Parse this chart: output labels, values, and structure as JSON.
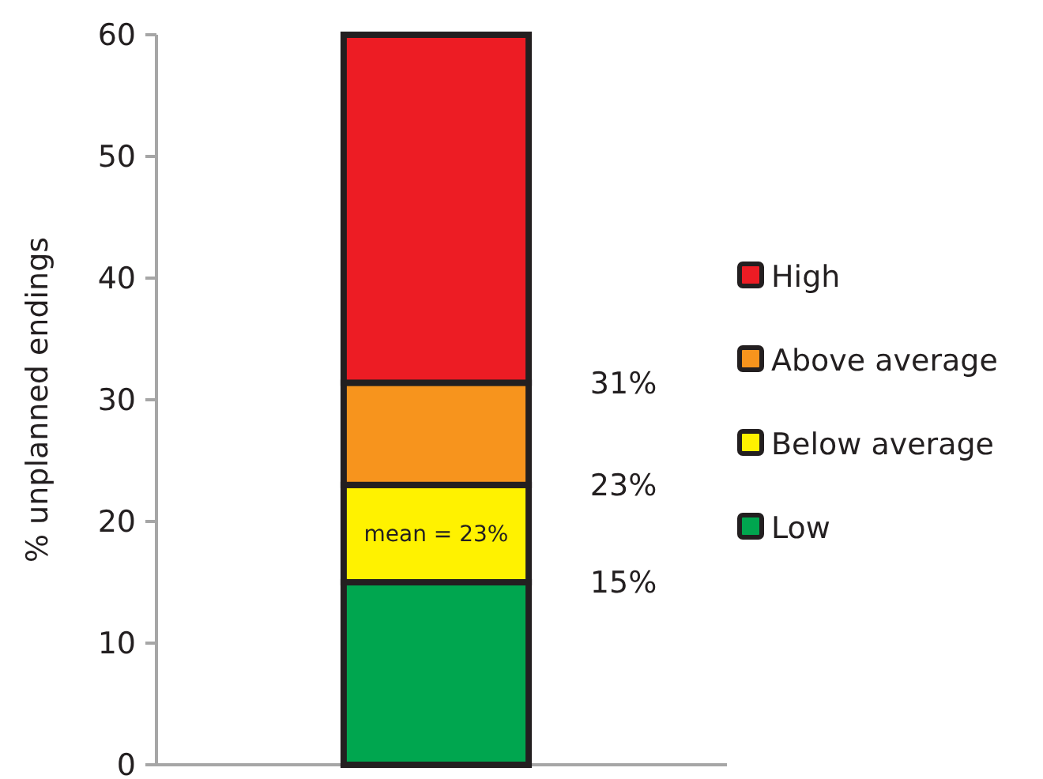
{
  "chart_data": {
    "type": "bar",
    "stacked": true,
    "categories": [
      null
    ],
    "ylabel": "% unplanned endings",
    "series": [
      {
        "name": "Low",
        "color": "#00a64f",
        "values": [
          15
        ]
      },
      {
        "name": "Below average",
        "color": "#fff200",
        "values": [
          8
        ]
      },
      {
        "name": "Above average",
        "color": "#f7941d",
        "values": [
          8.4
        ]
      },
      {
        "name": "High",
        "color": "#ed1c24",
        "values": [
          28.6
        ]
      }
    ],
    "ylim": [
      0,
      60
    ],
    "yticks": [
      0,
      10,
      20,
      30,
      40,
      50,
      60
    ],
    "tick_labels": "y",
    "grid": false,
    "legend": "right",
    "annotations": [
      "31%",
      "23%",
      "15%",
      "mean = 23%"
    ]
  }
}
